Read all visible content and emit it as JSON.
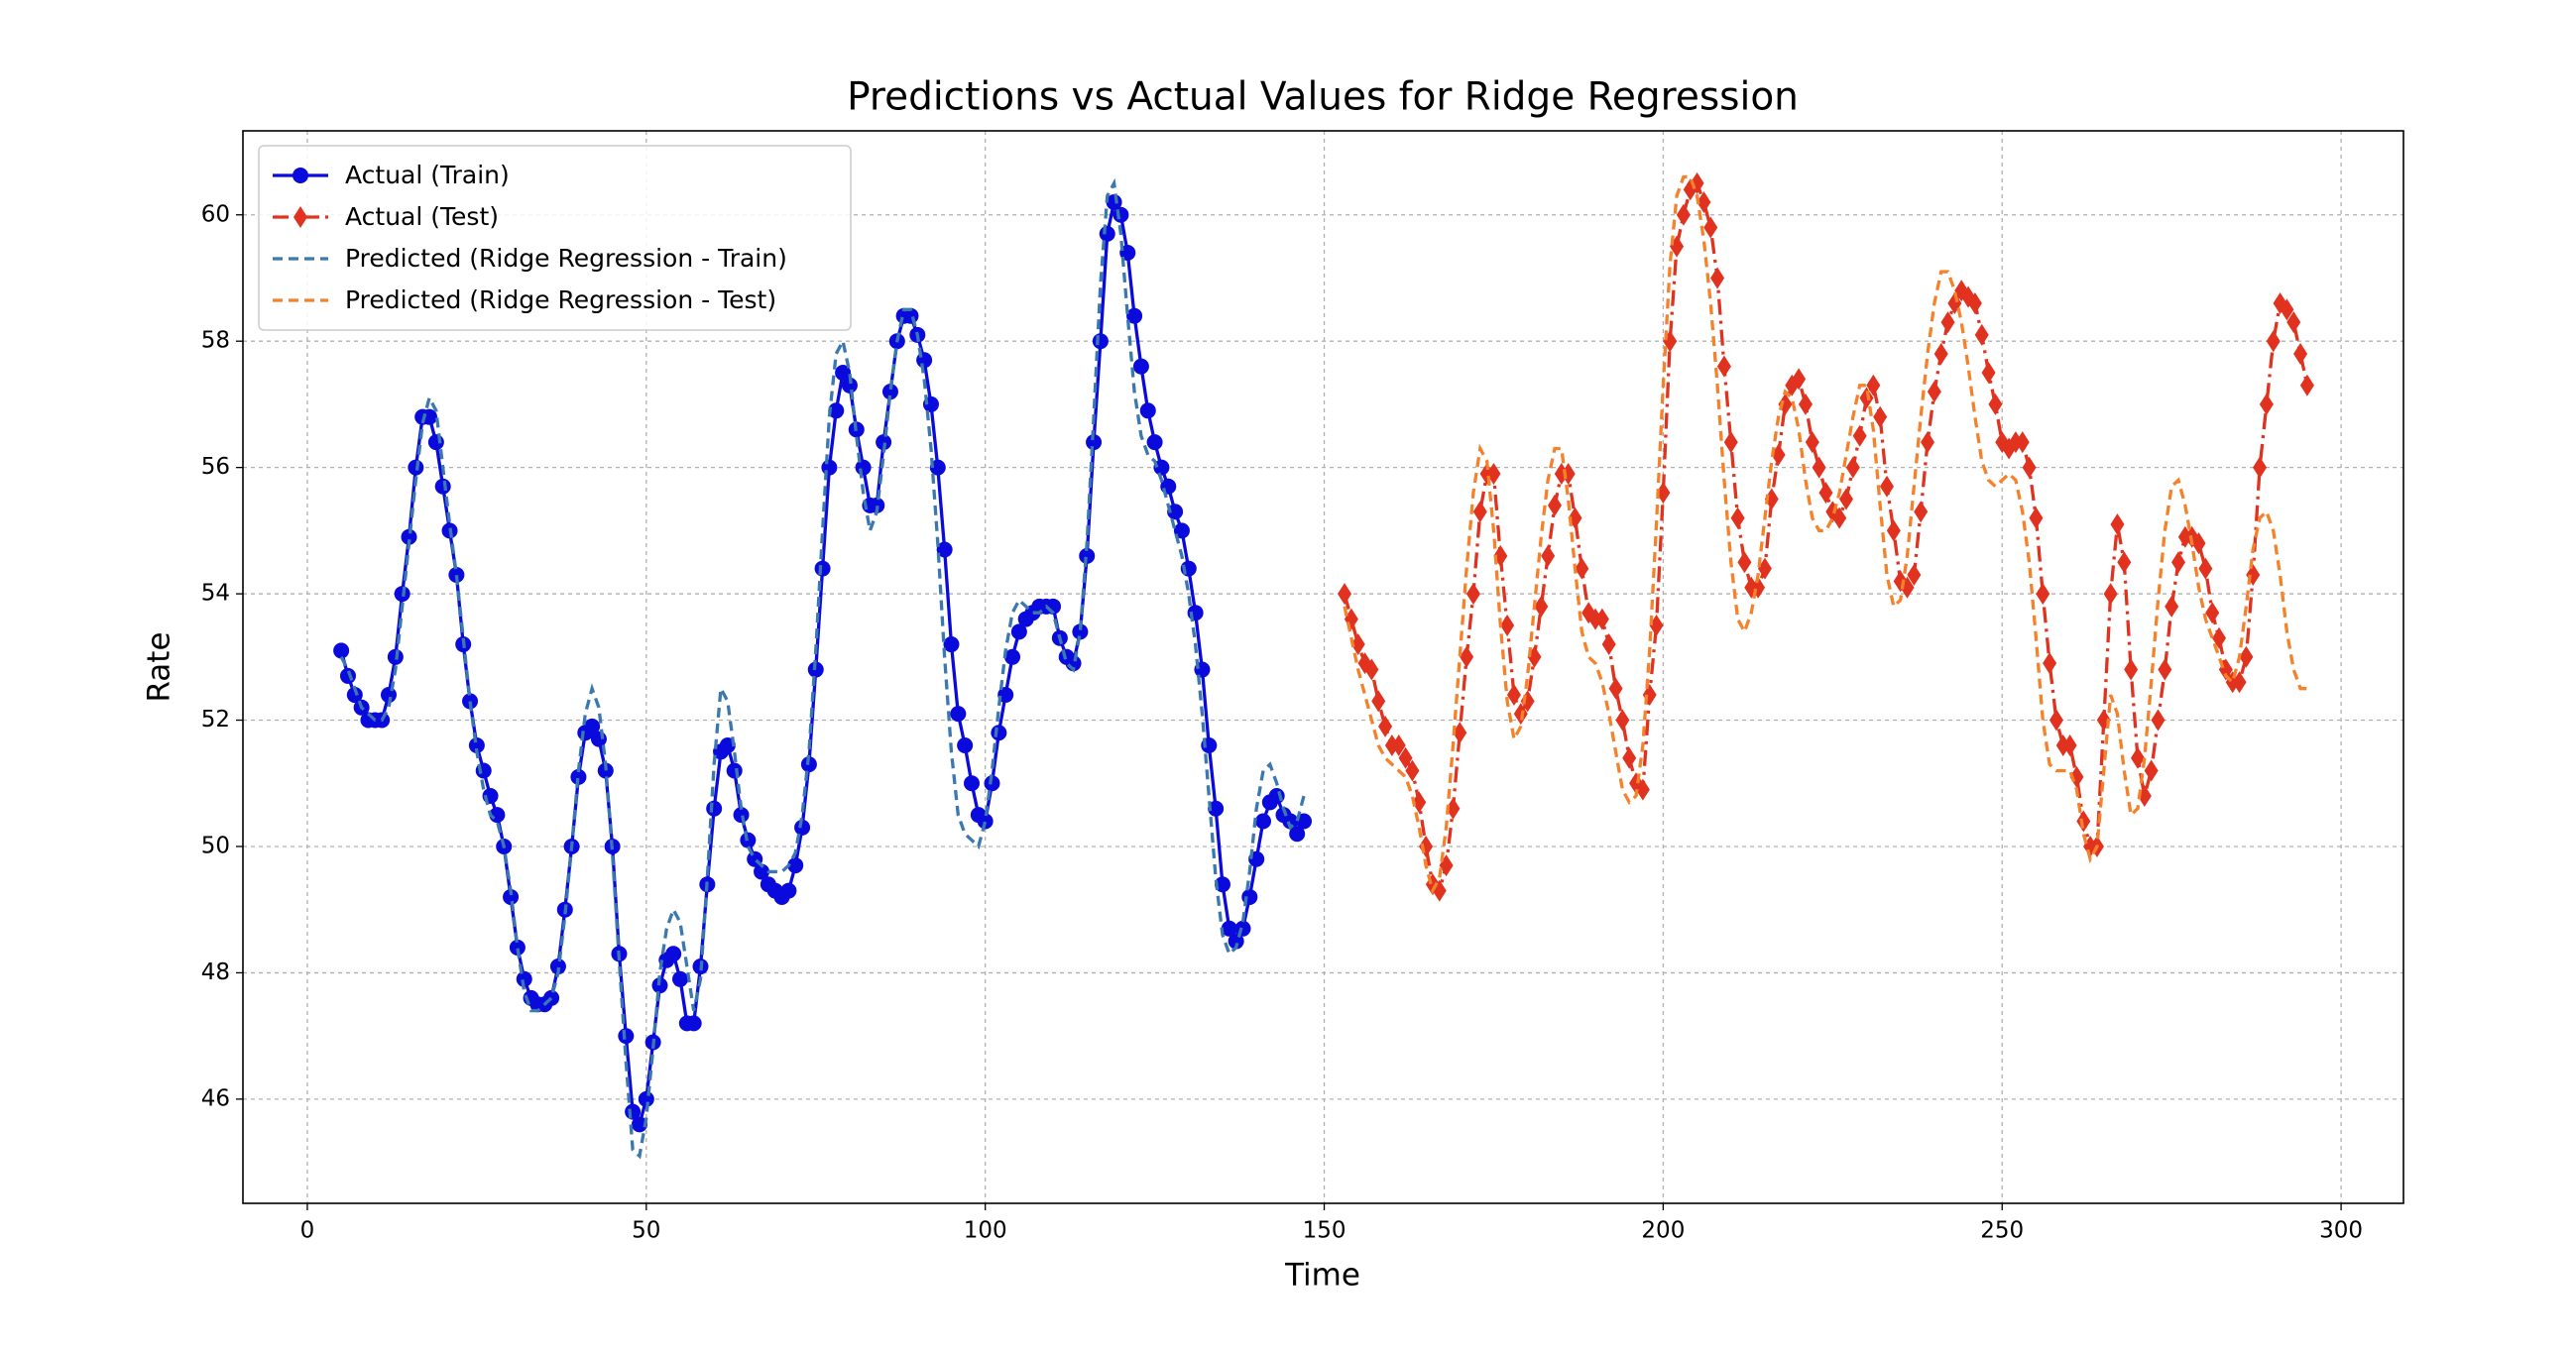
{
  "chart_data": {
    "type": "line",
    "title": "Predictions vs Actual Values for Ridge Regression",
    "x_label": "Time",
    "y_label": "Rate",
    "xlim": [
      -9.5,
      309.2
    ],
    "ylim": [
      44.35,
      61.33
    ],
    "xticks": [
      0,
      50,
      100,
      150,
      200,
      250,
      300
    ],
    "yticks": [
      46,
      48,
      50,
      52,
      54,
      56,
      58,
      60
    ],
    "grid": true,
    "legend_position": "upper left",
    "series": [
      {
        "name": "Actual (Train)",
        "color": "#0a0adc",
        "linestyle": "solid",
        "marker": "o",
        "x": [
          5,
          6,
          7,
          8,
          9,
          10,
          11,
          12,
          13,
          14,
          15,
          16,
          17,
          18,
          19,
          20,
          21,
          22,
          23,
          24,
          25,
          26,
          27,
          28,
          29,
          30,
          31,
          32,
          33,
          34,
          35,
          36,
          37,
          38,
          39,
          40,
          41,
          42,
          43,
          44,
          45,
          46,
          47,
          48,
          49,
          50,
          51,
          52,
          53,
          54,
          55,
          56,
          57,
          58,
          59,
          60,
          61,
          62,
          63,
          64,
          65,
          66,
          67,
          68,
          69,
          70,
          71,
          72,
          73,
          74,
          75,
          76,
          77,
          78,
          79,
          80,
          81,
          82,
          83,
          84,
          85,
          86,
          87,
          88,
          89,
          90,
          91,
          92,
          93,
          94,
          95,
          96,
          97,
          98,
          99,
          100,
          101,
          102,
          103,
          104,
          105,
          106,
          107,
          108,
          109,
          110,
          111,
          112,
          113,
          114,
          115,
          116,
          117,
          118,
          119,
          120,
          121,
          122,
          123,
          124,
          125,
          126,
          127,
          128,
          129,
          130,
          131,
          132,
          133,
          134,
          135,
          136,
          137,
          138,
          139,
          140,
          141,
          142,
          143,
          144,
          145,
          146,
          147
        ],
        "values": [
          53.1,
          52.7,
          52.4,
          52.2,
          52.0,
          52.0,
          52.0,
          52.4,
          53.0,
          54.0,
          54.9,
          56.0,
          56.8,
          56.8,
          56.4,
          55.7,
          55.0,
          54.3,
          53.2,
          52.3,
          51.6,
          51.2,
          50.8,
          50.5,
          50.0,
          49.2,
          48.4,
          47.9,
          47.6,
          47.5,
          47.5,
          47.6,
          48.1,
          49.0,
          50.0,
          51.1,
          51.8,
          51.9,
          51.7,
          51.2,
          50.0,
          48.3,
          47.0,
          45.8,
          45.6,
          46.0,
          46.9,
          47.8,
          48.2,
          48.3,
          47.9,
          47.2,
          47.2,
          48.1,
          49.4,
          50.6,
          51.5,
          51.6,
          51.2,
          50.5,
          50.1,
          49.8,
          49.6,
          49.4,
          49.3,
          49.2,
          49.3,
          49.7,
          50.3,
          51.3,
          52.8,
          54.4,
          56.0,
          56.9,
          57.5,
          57.3,
          56.6,
          56.0,
          55.4,
          55.4,
          56.4,
          57.2,
          58.0,
          58.4,
          58.4,
          58.1,
          57.7,
          57.0,
          56.0,
          54.7,
          53.2,
          52.1,
          51.6,
          51.0,
          50.5,
          50.4,
          51.0,
          51.8,
          52.4,
          53.0,
          53.4,
          53.6,
          53.7,
          53.8,
          53.8,
          53.8,
          53.3,
          53.0,
          52.9,
          53.4,
          54.6,
          56.4,
          58.0,
          59.7,
          60.2,
          60.0,
          59.4,
          58.4,
          57.6,
          56.9,
          56.4,
          56.0,
          55.7,
          55.3,
          55.0,
          54.4,
          53.7,
          52.8,
          51.6,
          50.6,
          49.4,
          48.7,
          48.5,
          48.7,
          49.2,
          49.8,
          50.4,
          50.7,
          50.8,
          50.5,
          50.4,
          50.2,
          50.4
        ]
      },
      {
        "name": "Actual (Test)",
        "color": "#e0321e",
        "linestyle": "dashdot",
        "marker": "d",
        "x": [
          153,
          154,
          155,
          156,
          157,
          158,
          159,
          160,
          161,
          162,
          163,
          164,
          165,
          166,
          167,
          168,
          169,
          170,
          171,
          172,
          173,
          174,
          175,
          176,
          177,
          178,
          179,
          180,
          181,
          182,
          183,
          184,
          185,
          186,
          187,
          188,
          189,
          190,
          191,
          192,
          193,
          194,
          195,
          196,
          197,
          198,
          199,
          200,
          201,
          202,
          203,
          204,
          205,
          206,
          207,
          208,
          209,
          210,
          211,
          212,
          213,
          214,
          215,
          216,
          217,
          218,
          219,
          220,
          221,
          222,
          223,
          224,
          225,
          226,
          227,
          228,
          229,
          230,
          231,
          232,
          233,
          234,
          235,
          236,
          237,
          238,
          239,
          240,
          241,
          242,
          243,
          244,
          245,
          246,
          247,
          248,
          249,
          250,
          251,
          252,
          253,
          254,
          255,
          256,
          257,
          258,
          259,
          260,
          261,
          262,
          263,
          264,
          265,
          266,
          267,
          268,
          269,
          270,
          271,
          272,
          273,
          274,
          275,
          276,
          277,
          278,
          279,
          280,
          281,
          282,
          283,
          284,
          285,
          286,
          287,
          288,
          289,
          290,
          291,
          292,
          293,
          294,
          295
        ],
        "values": [
          54.0,
          53.6,
          53.2,
          52.9,
          52.8,
          52.3,
          51.9,
          51.6,
          51.6,
          51.4,
          51.2,
          50.7,
          50.0,
          49.4,
          49.3,
          49.7,
          50.6,
          51.8,
          53.0,
          54.0,
          55.3,
          55.9,
          55.9,
          54.6,
          53.5,
          52.4,
          52.1,
          52.3,
          53.0,
          53.8,
          54.6,
          55.4,
          55.9,
          55.9,
          55.2,
          54.4,
          53.7,
          53.6,
          53.6,
          53.2,
          52.5,
          52.0,
          51.4,
          51.0,
          50.9,
          52.4,
          53.5,
          55.6,
          58.0,
          59.5,
          60.0,
          60.4,
          60.5,
          60.2,
          59.8,
          59.0,
          57.6,
          56.4,
          55.2,
          54.5,
          54.1,
          54.1,
          54.4,
          55.5,
          56.2,
          57.0,
          57.3,
          57.4,
          57.0,
          56.4,
          56.0,
          55.6,
          55.3,
          55.2,
          55.5,
          56.0,
          56.5,
          57.1,
          57.3,
          56.8,
          55.7,
          55.0,
          54.2,
          54.1,
          54.3,
          55.3,
          56.4,
          57.2,
          57.8,
          58.3,
          58.6,
          58.8,
          58.7,
          58.6,
          58.1,
          57.5,
          57.0,
          56.4,
          56.3,
          56.4,
          56.4,
          56.0,
          55.2,
          54.0,
          52.9,
          52.0,
          51.6,
          51.6,
          51.1,
          50.4,
          50.0,
          50.0,
          52.0,
          54.0,
          55.1,
          54.5,
          52.8,
          51.4,
          50.8,
          51.2,
          52.0,
          52.8,
          53.8,
          54.5,
          54.9,
          54.9,
          54.8,
          54.4,
          53.7,
          53.3,
          52.8,
          52.6,
          52.6,
          53.0,
          54.3,
          56.0,
          57.0,
          58.0,
          58.6,
          58.5,
          58.3,
          57.8,
          57.3
        ]
      },
      {
        "name": "Predicted (Ridge Regression - Train)",
        "color": "#3b78b0",
        "linestyle": "dashed",
        "marker": null,
        "x": [
          5,
          6,
          7,
          8,
          9,
          10,
          11,
          12,
          13,
          14,
          15,
          16,
          17,
          18,
          19,
          20,
          21,
          22,
          23,
          24,
          25,
          26,
          27,
          28,
          29,
          30,
          31,
          32,
          33,
          34,
          35,
          36,
          37,
          38,
          39,
          40,
          41,
          42,
          43,
          44,
          45,
          46,
          47,
          48,
          49,
          50,
          51,
          52,
          53,
          54,
          55,
          56,
          57,
          58,
          59,
          60,
          61,
          62,
          63,
          64,
          65,
          66,
          67,
          68,
          69,
          70,
          71,
          72,
          73,
          74,
          75,
          76,
          77,
          78,
          79,
          80,
          81,
          82,
          83,
          84,
          85,
          86,
          87,
          88,
          89,
          90,
          91,
          92,
          93,
          94,
          95,
          96,
          97,
          98,
          99,
          100,
          101,
          102,
          103,
          104,
          105,
          106,
          107,
          108,
          109,
          110,
          111,
          112,
          113,
          114,
          115,
          116,
          117,
          118,
          119,
          120,
          121,
          122,
          123,
          124,
          125,
          126,
          127,
          128,
          129,
          130,
          131,
          132,
          133,
          134,
          135,
          136,
          137,
          138,
          139,
          140,
          141,
          142,
          143,
          144,
          145,
          146,
          147
        ],
        "values": [
          53.0,
          52.8,
          52.5,
          52.2,
          52.1,
          52.0,
          52.0,
          52.2,
          52.8,
          53.8,
          54.8,
          55.8,
          56.7,
          57.1,
          56.9,
          56.0,
          55.1,
          54.3,
          53.3,
          52.3,
          51.5,
          50.9,
          50.5,
          50.4,
          50.0,
          49.3,
          48.4,
          47.7,
          47.4,
          47.4,
          47.5,
          47.6,
          48.0,
          48.9,
          50.0,
          51.2,
          52.1,
          52.5,
          52.2,
          51.3,
          49.9,
          48.2,
          46.6,
          45.2,
          45.1,
          45.7,
          46.8,
          48.0,
          48.7,
          49.0,
          48.8,
          48.1,
          47.4,
          47.9,
          49.5,
          51.3,
          52.5,
          52.3,
          51.5,
          50.6,
          50.0,
          49.8,
          49.7,
          49.6,
          49.6,
          49.6,
          49.7,
          49.9,
          50.5,
          51.5,
          53.1,
          55.0,
          56.8,
          57.8,
          58.0,
          57.5,
          56.5,
          55.6,
          55.0,
          55.3,
          56.2,
          57.2,
          58.0,
          58.5,
          58.5,
          58.1,
          57.4,
          56.3,
          54.8,
          53.0,
          51.5,
          50.5,
          50.2,
          50.1,
          50.0,
          50.4,
          51.2,
          52.2,
          53.1,
          53.7,
          53.9,
          53.8,
          53.7,
          53.7,
          53.8,
          53.7,
          53.3,
          52.9,
          52.8,
          53.4,
          54.8,
          56.8,
          58.9,
          60.3,
          60.5,
          59.7,
          58.4,
          57.2,
          56.5,
          56.2,
          56.1,
          55.8,
          55.4,
          55.0,
          54.6,
          54.0,
          53.2,
          52.1,
          50.8,
          49.5,
          48.6,
          48.3,
          48.4,
          48.8,
          49.6,
          50.6,
          51.2,
          51.3,
          51.0,
          50.6,
          50.3,
          50.4,
          50.8
        ]
      },
      {
        "name": "Predicted (Ridge Regression - Test)",
        "color": "#f5822a",
        "linestyle": "dashed",
        "marker": null,
        "x": [
          153,
          154,
          155,
          156,
          157,
          158,
          159,
          160,
          161,
          162,
          163,
          164,
          165,
          166,
          167,
          168,
          169,
          170,
          171,
          172,
          173,
          174,
          175,
          176,
          177,
          178,
          179,
          180,
          181,
          182,
          183,
          184,
          185,
          186,
          187,
          188,
          189,
          190,
          191,
          192,
          193,
          194,
          195,
          196,
          197,
          198,
          199,
          200,
          201,
          202,
          203,
          204,
          205,
          206,
          207,
          208,
          209,
          210,
          211,
          212,
          213,
          214,
          215,
          216,
          217,
          218,
          219,
          220,
          221,
          222,
          223,
          224,
          225,
          226,
          227,
          228,
          229,
          230,
          231,
          232,
          233,
          234,
          235,
          236,
          237,
          238,
          239,
          240,
          241,
          242,
          243,
          244,
          245,
          246,
          247,
          248,
          249,
          250,
          251,
          252,
          253,
          254,
          255,
          256,
          257,
          258,
          259,
          260,
          261,
          262,
          263,
          264,
          265,
          266,
          267,
          268,
          269,
          270,
          271,
          272,
          273,
          274,
          275,
          276,
          277,
          278,
          279,
          280,
          281,
          282,
          283,
          284,
          285,
          286,
          287,
          288,
          289,
          290,
          291,
          292,
          293,
          294,
          295
        ],
        "values": [
          53.8,
          53.3,
          52.8,
          52.4,
          52.0,
          51.6,
          51.4,
          51.3,
          51.2,
          51.1,
          50.8,
          50.3,
          49.7,
          49.3,
          49.5,
          50.3,
          51.6,
          53.0,
          54.4,
          55.6,
          56.3,
          56.1,
          55.0,
          53.5,
          52.3,
          51.7,
          51.9,
          52.7,
          53.8,
          54.9,
          55.8,
          56.3,
          56.3,
          55.5,
          54.4,
          53.4,
          53.0,
          52.9,
          52.6,
          52.1,
          51.5,
          50.9,
          50.7,
          50.8,
          51.6,
          53.1,
          55.1,
          57.3,
          59.2,
          60.3,
          60.6,
          60.6,
          60.3,
          59.6,
          58.6,
          57.3,
          55.8,
          54.5,
          53.6,
          53.4,
          53.7,
          54.3,
          55.2,
          56.1,
          56.8,
          57.2,
          57.1,
          56.6,
          55.8,
          55.2,
          55.0,
          55.0,
          55.2,
          55.6,
          56.2,
          56.8,
          57.3,
          57.3,
          56.6,
          55.4,
          54.3,
          53.8,
          53.9,
          54.6,
          55.7,
          56.8,
          57.8,
          58.6,
          59.1,
          59.1,
          58.8,
          58.3,
          57.6,
          56.8,
          56.1,
          55.8,
          55.7,
          55.8,
          55.9,
          55.8,
          55.3,
          54.5,
          53.3,
          52.0,
          51.3,
          51.2,
          51.2,
          51.2,
          50.9,
          50.2,
          49.8,
          50.0,
          51.2,
          52.4,
          52.1,
          51.2,
          50.5,
          50.6,
          51.4,
          52.6,
          53.9,
          55.0,
          55.7,
          55.8,
          55.4,
          54.8,
          54.1,
          53.6,
          53.3,
          53.0,
          52.7,
          52.6,
          53.0,
          53.8,
          54.7,
          55.2,
          55.3,
          55.0,
          54.3,
          53.4,
          52.8,
          52.5,
          52.5
        ]
      }
    ]
  }
}
